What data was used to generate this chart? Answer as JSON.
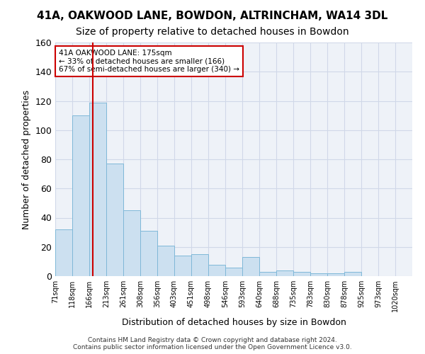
{
  "title": "41A, OAKWOOD LANE, BOWDON, ALTRINCHAM, WA14 3DL",
  "subtitle": "Size of property relative to detached houses in Bowdon",
  "xlabel": "Distribution of detached houses by size in Bowdon",
  "ylabel": "Number of detached properties",
  "footer_line1": "Contains HM Land Registry data © Crown copyright and database right 2024.",
  "footer_line2": "Contains public sector information licensed under the Open Government Licence v3.0.",
  "categories": [
    "71sqm",
    "118sqm",
    "166sqm",
    "213sqm",
    "261sqm",
    "308sqm",
    "356sqm",
    "403sqm",
    "451sqm",
    "498sqm",
    "546sqm",
    "593sqm",
    "640sqm",
    "688sqm",
    "735sqm",
    "783sqm",
    "830sqm",
    "878sqm",
    "925sqm",
    "973sqm",
    "1020sqm"
  ],
  "bar_heights": [
    32,
    110,
    119,
    77,
    45,
    31,
    21,
    14,
    15,
    8,
    6,
    13,
    3,
    4,
    3,
    2,
    2,
    3,
    0,
    0,
    0
  ],
  "bar_color": "#cce0f0",
  "bar_edgecolor": "#7fb8d8",
  "vline_color": "#cc0000",
  "annotation_text": "41A OAKWOOD LANE: 175sqm\n← 33% of detached houses are smaller (166)\n67% of semi-detached houses are larger (340) →",
  "annotation_box_edgecolor": "#cc0000",
  "annotation_box_facecolor": "#ffffff",
  "ylim": [
    0,
    160
  ],
  "yticks": [
    0,
    20,
    40,
    60,
    80,
    100,
    120,
    140,
    160
  ],
  "grid_color": "#d0d8e8",
  "bg_color": "#eef2f8",
  "title_fontsize": 11,
  "subtitle_fontsize": 10
}
